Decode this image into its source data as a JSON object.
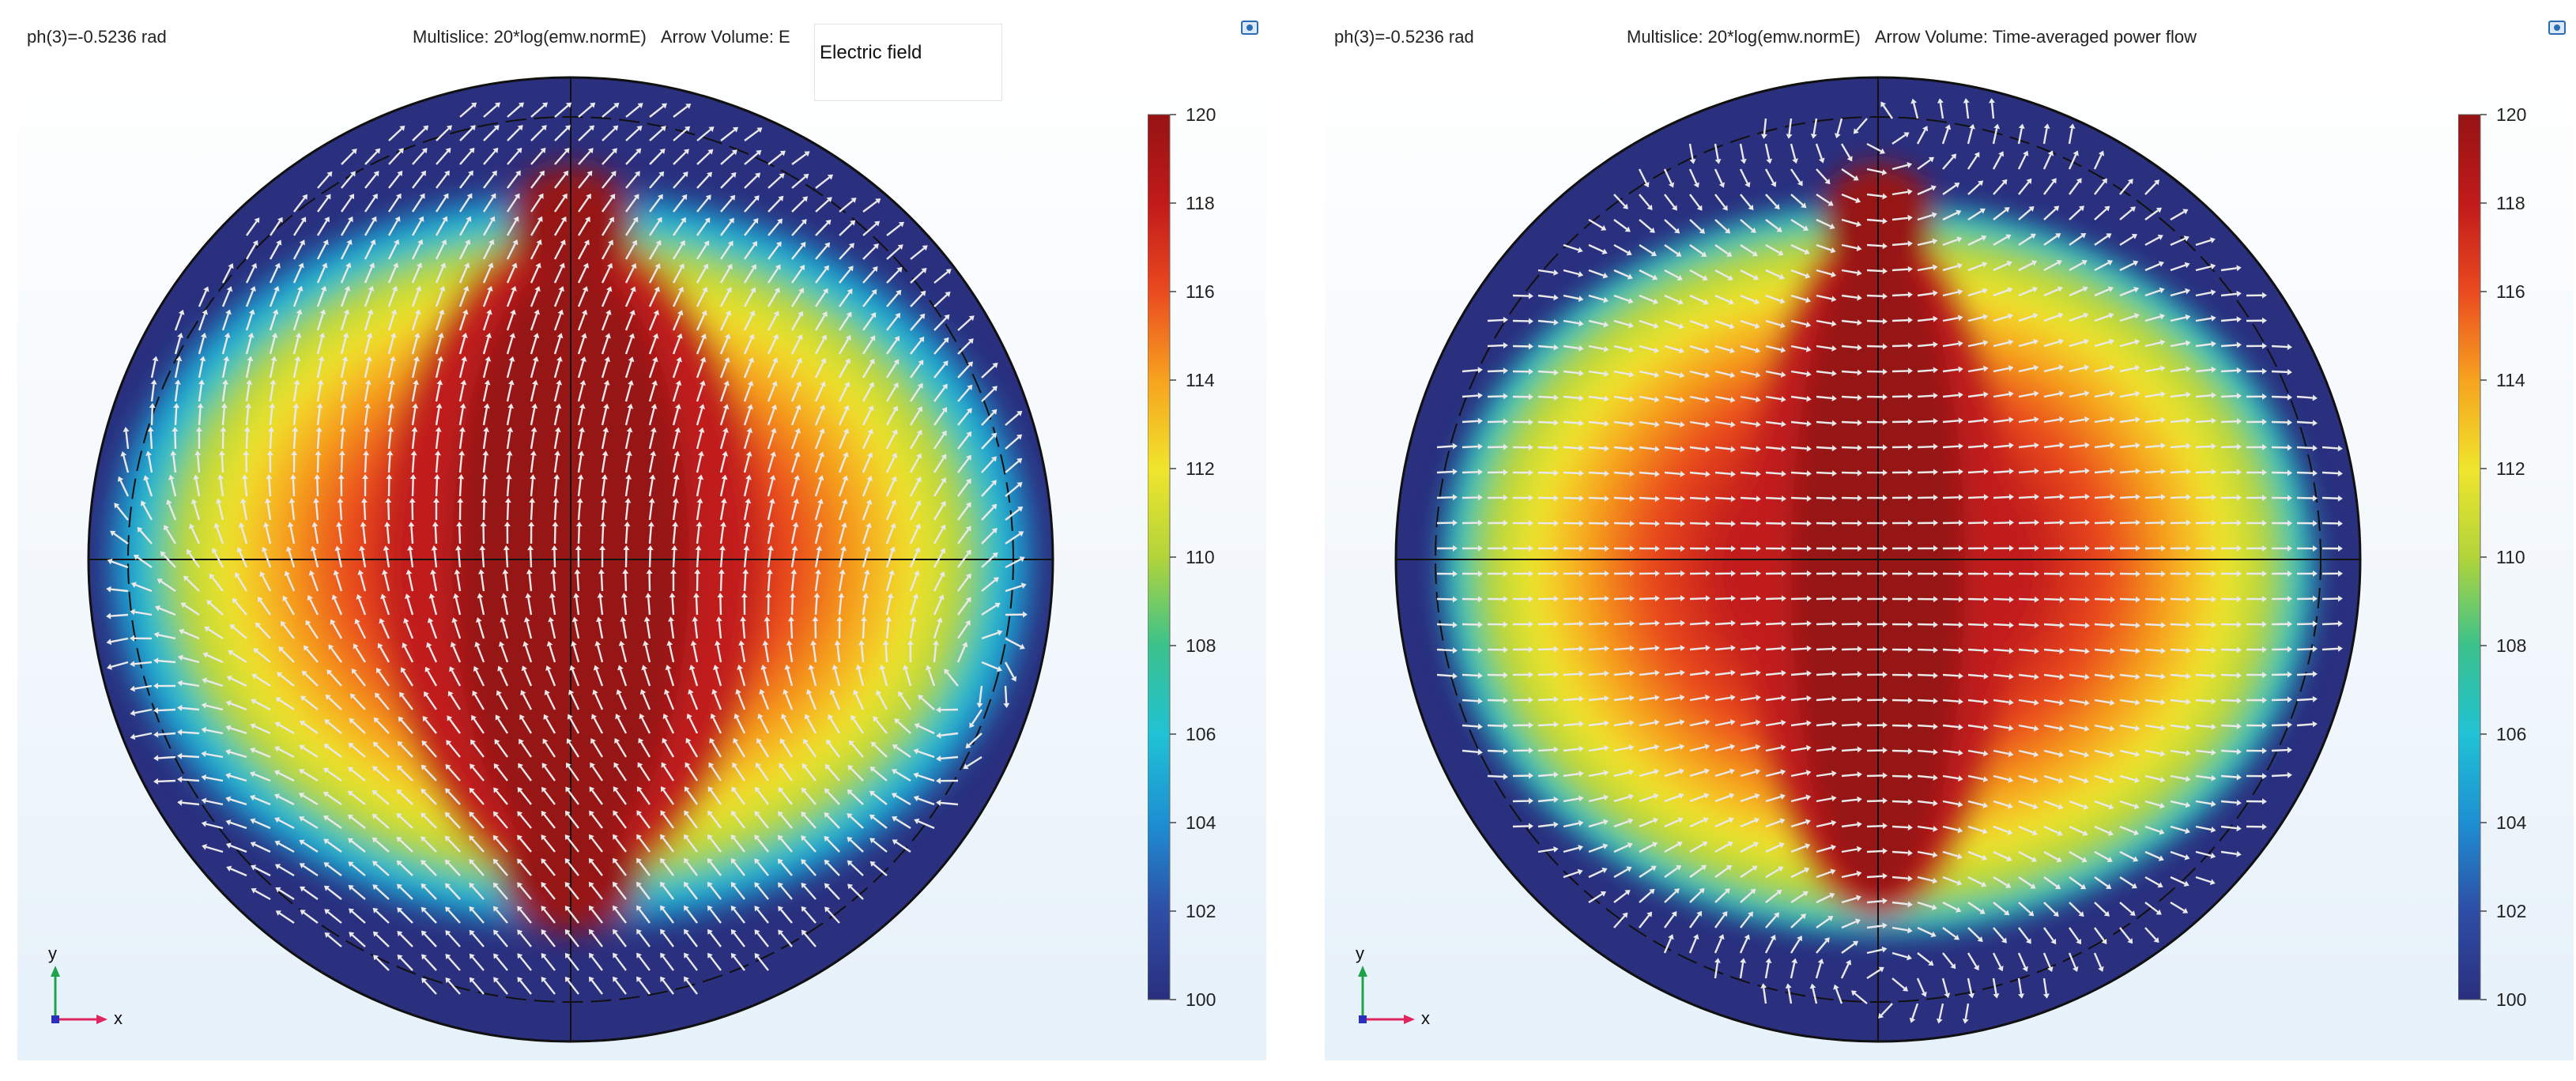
{
  "panels": [
    {
      "parameter_label": "ph(3)=-0.5236 rad",
      "multislice_label": "Multislice: 20*log(emw.normE)",
      "arrow_label": "Arrow Volume: E",
      "tooltip_text": "Electric field",
      "arrow_field": "electric"
    },
    {
      "parameter_label": "ph(3)=-0.5236 rad",
      "multislice_label": "Multislice: 20*log(emw.normE)",
      "arrow_label": "Arrow Volume: Time-averaged power flow",
      "tooltip_text": "",
      "arrow_field": "power"
    }
  ],
  "colorbar": {
    "min": 100,
    "max": 120,
    "ticks": [
      "120",
      "118",
      "116",
      "114",
      "112",
      "110",
      "108",
      "106",
      "104",
      "102",
      "100"
    ]
  },
  "axes_triad": {
    "y_label": "y",
    "x_label": "x"
  },
  "colors": {
    "scale": [
      "#2a2f7e",
      "#2e4ea6",
      "#1d8fd2",
      "#20c2d5",
      "#3bc28c",
      "#b2d43a",
      "#f0e52c",
      "#f7a31f",
      "#ea4a1f",
      "#c11a1a",
      "#961313"
    ],
    "arrow": "#e9e9e9",
    "x_axis": "#e0245e",
    "y_axis": "#1fa34a",
    "outline": "#111111"
  }
}
